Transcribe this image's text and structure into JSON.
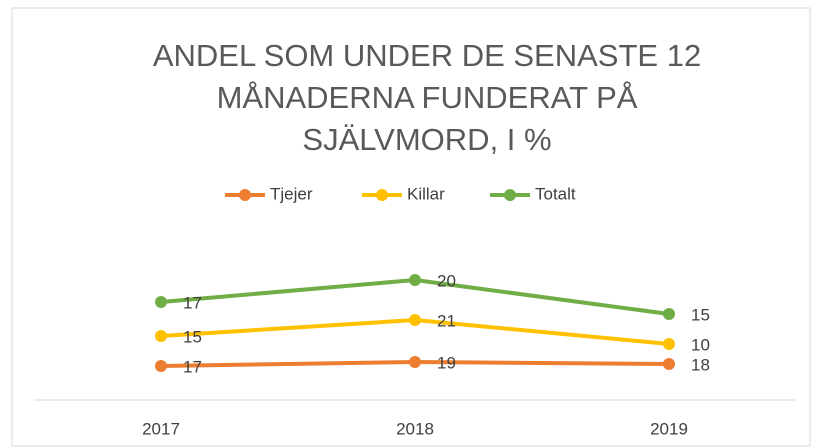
{
  "chart_data": {
    "type": "line",
    "stacked": true,
    "title": "ANDEL SOM UNDER DE SENASTE 12 MÅNADERNA FUNDERAT PÅ SJÄLVMORD, I %",
    "categories": [
      "2017",
      "2018",
      "2019"
    ],
    "series": [
      {
        "name": "Tjejer",
        "color": "#ED7D31",
        "values": [
          17,
          19,
          18
        ]
      },
      {
        "name": "Killar",
        "color": "#FFC000",
        "values": [
          15,
          21,
          10
        ]
      },
      {
        "name": "Totalt",
        "color": "#70AD47",
        "values": [
          17,
          20,
          15
        ]
      }
    ],
    "ylim": [
      0,
      90
    ],
    "legend": "top"
  }
}
